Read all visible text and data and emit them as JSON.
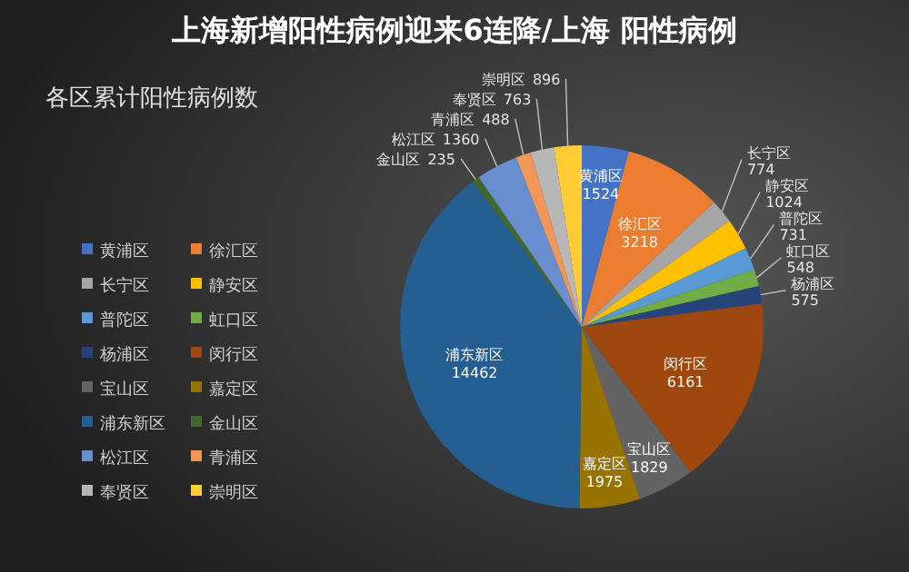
{
  "chart_data": {
    "type": "pie",
    "title": "各区累计阳性病例数",
    "annotations": [
      "上海新增阳性病例迎来6连降/上海 阳性病例"
    ],
    "categories": [
      "黄浦区",
      "徐汇区",
      "长宁区",
      "静安区",
      "普陀区",
      "虹口区",
      "杨浦区",
      "闵行区",
      "宝山区",
      "嘉定区",
      "浦东新区",
      "金山区",
      "松江区",
      "青浦区",
      "奉贤区",
      "崇明区"
    ],
    "values": [
      1524,
      3218,
      774,
      1024,
      731,
      548,
      575,
      6161,
      1829,
      1975,
      14462,
      235,
      1360,
      488,
      763,
      896
    ],
    "colors": [
      "#4472c4",
      "#ed7d31",
      "#a5a5a5",
      "#ffc000",
      "#5b9bd5",
      "#70ad47",
      "#264478",
      "#9e480e",
      "#636363",
      "#997300",
      "#255e91",
      "#43682b",
      "#698ed0",
      "#f1975a",
      "#b7b7b7",
      "#ffcd33"
    ],
    "data_labels": true,
    "legend": "left"
  }
}
